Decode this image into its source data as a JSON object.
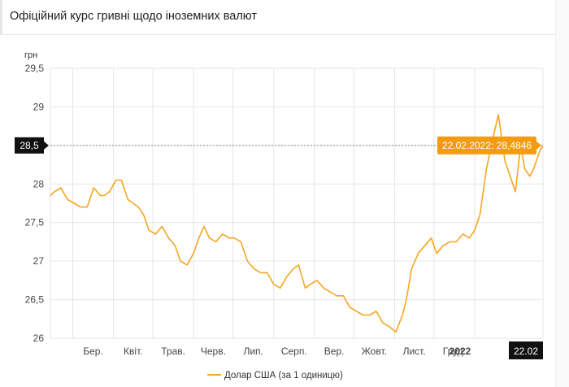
{
  "page_title": "Офіційний курс гривні щодо іноземних валют",
  "colors": {
    "series": "#f5a623",
    "grid": "#e6e6e6",
    "crosshair_label_bg": "#111111",
    "tooltip_bg": "#f39c12"
  },
  "crosshair": {
    "y_label": "28,5",
    "x_label": "22.02",
    "tooltip": "22.02.2022: 28,4846"
  },
  "chart_data": {
    "type": "line",
    "title": "",
    "ylabel": "грн",
    "ylim": [
      26,
      29.5
    ],
    "yticks": [
      "26",
      "26,5",
      "27",
      "27,5",
      "28",
      "28,5",
      "29",
      "29,5"
    ],
    "ytick_values": [
      26,
      26.5,
      27,
      27.5,
      28,
      28.5,
      29,
      29.5
    ],
    "xticks": [
      "Бер.",
      "Квіт.",
      "Трав.",
      "Черв.",
      "Лип.",
      "Серп.",
      "Вер.",
      "Жовт.",
      "Лист.",
      "Груд.",
      "2022"
    ],
    "xtick_dates": [
      "2021-03-01",
      "2021-04-01",
      "2021-05-01",
      "2021-06-01",
      "2021-07-01",
      "2021-08-01",
      "2021-09-01",
      "2021-10-01",
      "2021-11-01",
      "2021-12-01",
      "2022-01-01"
    ],
    "xlim": [
      "2021-02-12",
      "2022-02-22"
    ],
    "grid": true,
    "legend": "bottom",
    "series": [
      {
        "name": "Долар США (за 1 одиницю)",
        "x": [
          "2021-02-12",
          "2021-02-15",
          "2021-02-20",
          "2021-02-25",
          "2021-03-02",
          "2021-03-07",
          "2021-03-12",
          "2021-03-17",
          "2021-03-22",
          "2021-03-25",
          "2021-03-29",
          "2021-04-03",
          "2021-04-07",
          "2021-04-12",
          "2021-04-16",
          "2021-04-20",
          "2021-04-24",
          "2021-04-28",
          "2021-05-03",
          "2021-05-08",
          "2021-05-13",
          "2021-05-18",
          "2021-05-22",
          "2021-05-27",
          "2021-06-01",
          "2021-06-05",
          "2021-06-09",
          "2021-06-13",
          "2021-06-18",
          "2021-06-23",
          "2021-06-28",
          "2021-07-02",
          "2021-07-07",
          "2021-07-12",
          "2021-07-17",
          "2021-07-22",
          "2021-07-27",
          "2021-08-01",
          "2021-08-06",
          "2021-08-11",
          "2021-08-16",
          "2021-08-20",
          "2021-08-25",
          "2021-08-29",
          "2021-09-03",
          "2021-09-08",
          "2021-09-13",
          "2021-09-18",
          "2021-09-23",
          "2021-09-28",
          "2021-10-03",
          "2021-10-08",
          "2021-10-13",
          "2021-10-18",
          "2021-10-23",
          "2021-10-28",
          "2021-11-02",
          "2021-11-07",
          "2021-11-10",
          "2021-11-14",
          "2021-11-19",
          "2021-11-24",
          "2021-11-29",
          "2021-12-03",
          "2021-12-08",
          "2021-12-13",
          "2021-12-18",
          "2021-12-23",
          "2021-12-28",
          "2022-01-01",
          "2022-01-05",
          "2022-01-10",
          "2022-01-15",
          "2022-01-19",
          "2022-01-24",
          "2022-01-28",
          "2022-02-01",
          "2022-02-05",
          "2022-02-08",
          "2022-02-12",
          "2022-02-15",
          "2022-02-17",
          "2022-02-20",
          "2022-02-22"
        ],
        "values": [
          27.85,
          27.9,
          27.95,
          27.8,
          27.75,
          27.7,
          27.7,
          27.95,
          27.85,
          27.85,
          27.9,
          28.05,
          28.05,
          27.8,
          27.75,
          27.7,
          27.6,
          27.4,
          27.35,
          27.45,
          27.3,
          27.2,
          27.0,
          26.95,
          27.1,
          27.3,
          27.45,
          27.3,
          27.25,
          27.35,
          27.3,
          27.3,
          27.25,
          27.0,
          26.9,
          26.85,
          26.85,
          26.7,
          26.65,
          26.8,
          26.9,
          26.95,
          26.65,
          26.7,
          26.75,
          26.65,
          26.6,
          26.55,
          26.55,
          26.4,
          26.35,
          26.3,
          26.3,
          26.35,
          26.2,
          26.15,
          26.08,
          26.3,
          26.5,
          26.9,
          27.1,
          27.2,
          27.3,
          27.1,
          27.2,
          27.25,
          27.25,
          27.35,
          27.3,
          27.4,
          27.6,
          28.2,
          28.6,
          28.9,
          28.3,
          28.1,
          27.9,
          28.5,
          28.2,
          28.1,
          28.2,
          28.3,
          28.45,
          28.4846
        ]
      }
    ]
  }
}
